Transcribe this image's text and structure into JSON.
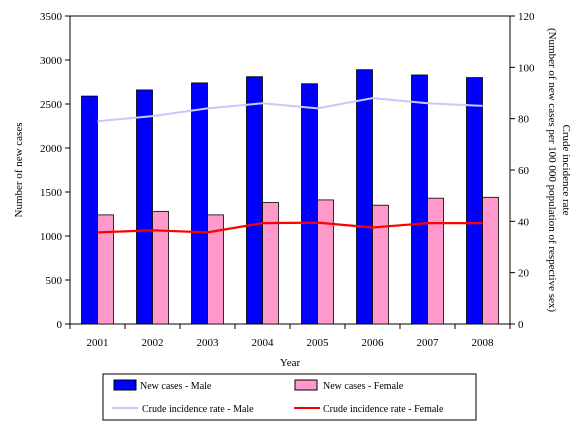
{
  "chart_data": {
    "type": "bar",
    "xlabel": "Year",
    "ylabel": "Number of new cases",
    "y2label_line1": "Crude incidence rate",
    "y2label_line2": "(Number of new cases per 100 000 population of respective sex)",
    "categories": [
      "2001",
      "2002",
      "2003",
      "2004",
      "2005",
      "2006",
      "2007",
      "2008"
    ],
    "ylim": [
      0,
      3500
    ],
    "y_ticks": [
      0,
      500,
      1000,
      1500,
      2000,
      2500,
      3000,
      3500
    ],
    "y2lim": [
      0,
      120
    ],
    "y2_ticks": [
      0,
      20,
      40,
      60,
      80,
      100,
      120
    ],
    "bar_series": [
      {
        "name": "New cases - Male",
        "color": "#0000ff",
        "values": [
          2590,
          2660,
          2740,
          2810,
          2730,
          2890,
          2830,
          2800
        ]
      },
      {
        "name": "New cases - Female",
        "color": "#ff99cc",
        "values": [
          1240,
          1280,
          1240,
          1380,
          1410,
          1350,
          1430,
          1440
        ]
      }
    ],
    "line_series": [
      {
        "name": "Crude incidence rate - Male",
        "color": "#c8c8ff",
        "values": [
          79,
          81,
          84,
          86,
          84,
          88,
          86,
          85
        ]
      },
      {
        "name": "Crude incidence rate - Female",
        "color": "#ff0000",
        "values": [
          35.7,
          36.5,
          35.7,
          39.3,
          39.5,
          37.6,
          39.3,
          39.3
        ]
      }
    ],
    "legend_position": "bottom",
    "grid": false
  }
}
